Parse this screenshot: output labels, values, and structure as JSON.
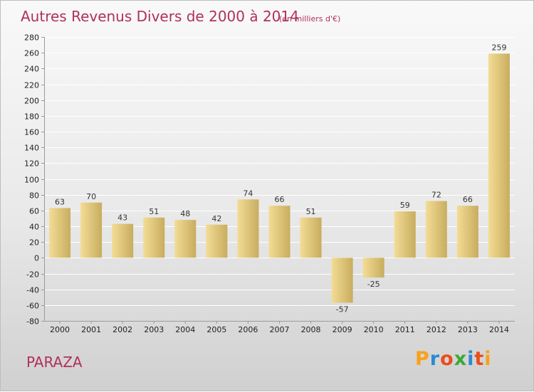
{
  "header": {
    "title": "Autres Revenus Divers de 2000 à 2014",
    "subtitle": "(en milliers d'€)"
  },
  "footer": {
    "place": "PARAZA",
    "brand": "Proxiti",
    "brand_colors": [
      "#f7a21b",
      "#2a8ad4",
      "#e94e1b",
      "#3aa935",
      "#2a8ad4",
      "#e94e1b",
      "#f7a21b"
    ]
  },
  "colors": {
    "bar_light": "#f3dc95",
    "bar_dark": "#c8ad5f",
    "title": "#b0305a",
    "gridline": "#ffffff"
  },
  "chart_data": {
    "type": "bar",
    "title": "Autres Revenus Divers de 2000 à 2014",
    "subtitle": "(en milliers d'€)",
    "categories": [
      "2000",
      "2001",
      "2002",
      "2003",
      "2004",
      "2005",
      "2006",
      "2007",
      "2008",
      "2009",
      "2010",
      "2011",
      "2012",
      "2013",
      "2014"
    ],
    "values": [
      63,
      70,
      43,
      51,
      48,
      42,
      74,
      66,
      51,
      -57,
      -25,
      59,
      72,
      66,
      259
    ],
    "ylim": [
      -80,
      280
    ],
    "yticks": [
      -80,
      -60,
      -40,
      -20,
      0,
      20,
      40,
      60,
      80,
      100,
      120,
      140,
      160,
      180,
      200,
      220,
      240,
      260,
      280
    ],
    "xlabel": "",
    "ylabel": "",
    "grid": true,
    "legend": "none"
  }
}
